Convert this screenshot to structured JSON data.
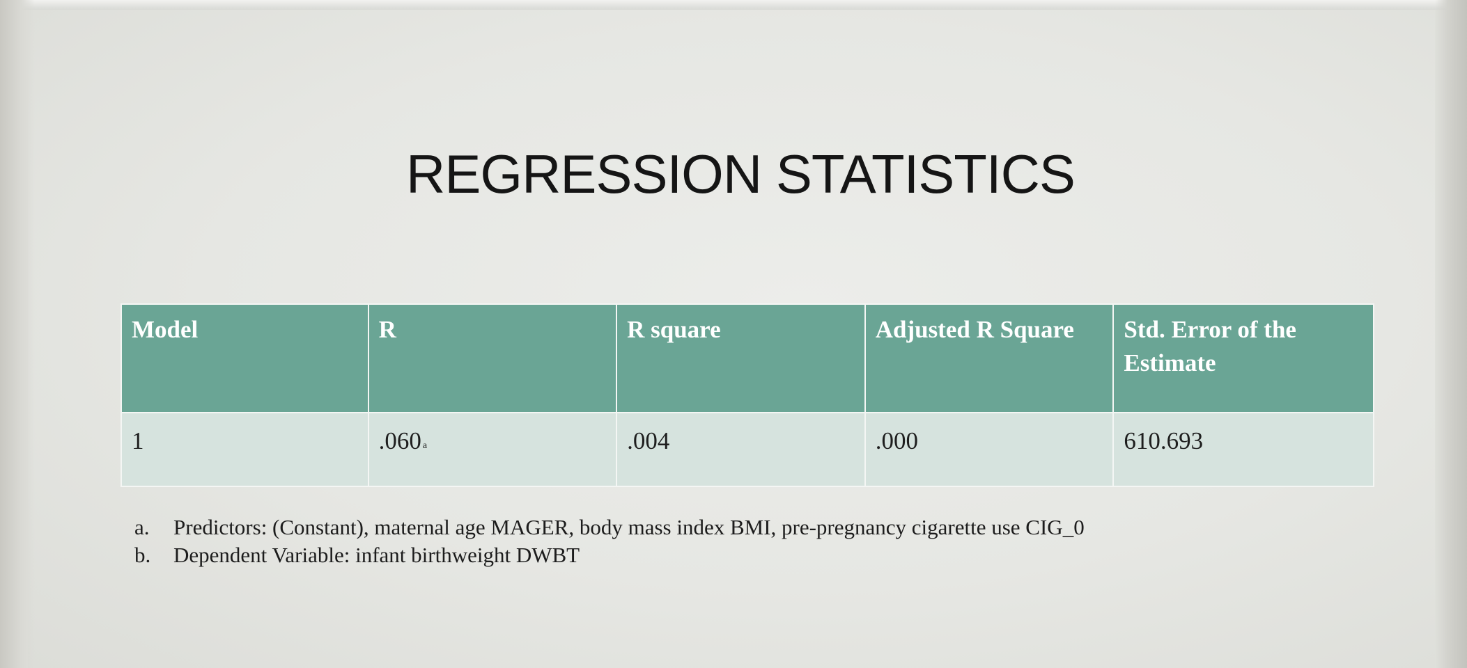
{
  "title": "REGRESSION STATISTICS",
  "table": {
    "headers": [
      "Model",
      "R",
      "R square",
      "Adjusted R Square",
      "Std. Error of the Estimate"
    ],
    "rows": [
      {
        "model": "1",
        "r": ".060",
        "r_superscript": "a",
        "r_square": ".004",
        "adjusted_r_square": ".000",
        "std_error": "610.693"
      }
    ]
  },
  "notes": [
    {
      "marker": "a.",
      "text": "Predictors: (Constant), maternal age MAGER, body mass index BMI, pre-pregnancy cigarette use CIG_0"
    },
    {
      "marker": "b.",
      "text": "Dependent Variable: infant birthweight DWBT"
    }
  ],
  "colors": {
    "header_fill": "#6aa595",
    "row_fill": "#d6e3de",
    "background": "#e6e7e3"
  }
}
